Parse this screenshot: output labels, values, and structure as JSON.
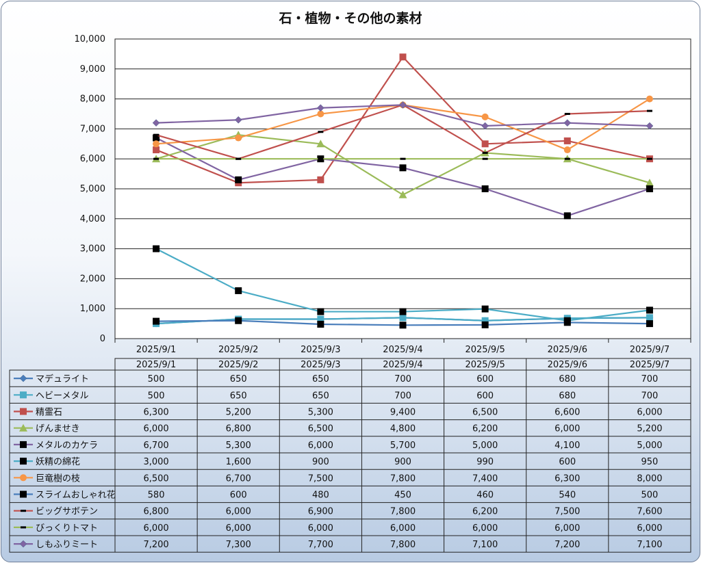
{
  "chart_data": {
    "type": "line",
    "title": "石・植物・その他の素材",
    "xlabel": "",
    "ylabel": "",
    "ylim": [
      0,
      10000
    ],
    "yticks": [
      "0",
      "1,000",
      "2,000",
      "3,000",
      "4,000",
      "5,000",
      "6,000",
      "7,000",
      "8,000",
      "9,000",
      "10,000"
    ],
    "categories": [
      "2025/9/1",
      "2025/9/2",
      "2025/9/3",
      "2025/9/4",
      "2025/9/5",
      "2025/9/6",
      "2025/9/7"
    ],
    "grid": true,
    "legend": "data-table",
    "series": [
      {
        "name": "マデュライト",
        "values": [
          500,
          650,
          650,
          700,
          600,
          680,
          700
        ],
        "display": [
          "500",
          "650",
          "650",
          "700",
          "600",
          "680",
          "700"
        ],
        "color": "#4a7ebb",
        "marker": "diamond"
      },
      {
        "name": "ヘビーメタル",
        "values": [
          500,
          650,
          650,
          700,
          600,
          680,
          700
        ],
        "display": [
          "500",
          "650",
          "650",
          "700",
          "600",
          "680",
          "700"
        ],
        "color": "#4bacc6",
        "marker": "square"
      },
      {
        "name": "精霊石",
        "values": [
          6300,
          5200,
          5300,
          9400,
          6500,
          6600,
          6000
        ],
        "display": [
          "6,300",
          "5,200",
          "5,300",
          "9,400",
          "6,500",
          "6,600",
          "6,000"
        ],
        "color": "#c0504d",
        "marker": "square"
      },
      {
        "name": "げんませき",
        "values": [
          6000,
          6800,
          6500,
          4800,
          6200,
          6000,
          5200
        ],
        "display": [
          "6,000",
          "6,800",
          "6,500",
          "4,800",
          "6,200",
          "6,000",
          "5,200"
        ],
        "color": "#9bbb59",
        "marker": "triangle"
      },
      {
        "name": "メタルのカケラ",
        "values": [
          6700,
          5300,
          6000,
          5700,
          5000,
          4100,
          5000
        ],
        "display": [
          "6,700",
          "5,300",
          "6,000",
          "5,700",
          "5,000",
          "4,100",
          "5,000"
        ],
        "color": "#8064a2",
        "marker": "blacksquare"
      },
      {
        "name": "妖精の綿花",
        "values": [
          3000,
          1600,
          900,
          900,
          990,
          600,
          950
        ],
        "display": [
          "3,000",
          "1,600",
          "900",
          "900",
          "990",
          "600",
          "950"
        ],
        "color": "#4bacc6",
        "marker": "blacksquare"
      },
      {
        "name": "巨竜樹の枝",
        "values": [
          6500,
          6700,
          7500,
          7800,
          7400,
          6300,
          8000
        ],
        "display": [
          "6,500",
          "6,700",
          "7,500",
          "7,800",
          "7,400",
          "6,300",
          "8,000"
        ],
        "color": "#f79646",
        "marker": "circle"
      },
      {
        "name": "スライムおしゃれ花",
        "values": [
          580,
          600,
          480,
          450,
          460,
          540,
          500
        ],
        "display": [
          "580",
          "600",
          "480",
          "450",
          "460",
          "540",
          "500"
        ],
        "color": "#4a7ebb",
        "marker": "blacksquare"
      },
      {
        "name": "ビッグサボテン",
        "values": [
          6800,
          6000,
          6900,
          7800,
          6200,
          7500,
          7600
        ],
        "display": [
          "6,800",
          "6,000",
          "6,900",
          "7,800",
          "6,200",
          "7,500",
          "7,600"
        ],
        "color": "#c0504d",
        "marker": "dash"
      },
      {
        "name": "びっくりトマト",
        "values": [
          6000,
          6000,
          6000,
          6000,
          6000,
          6000,
          6000
        ],
        "display": [
          "6,000",
          "6,000",
          "6,000",
          "6,000",
          "6,000",
          "6,000",
          "6,000"
        ],
        "color": "#9bbb59",
        "marker": "dash"
      },
      {
        "name": "しもふりミート",
        "values": [
          7200,
          7300,
          7700,
          7800,
          7100,
          7200,
          7100
        ],
        "display": [
          "7,200",
          "7,300",
          "7,700",
          "7,800",
          "7,100",
          "7,200",
          "7,100"
        ],
        "color": "#8064a2",
        "marker": "diamond"
      }
    ]
  }
}
